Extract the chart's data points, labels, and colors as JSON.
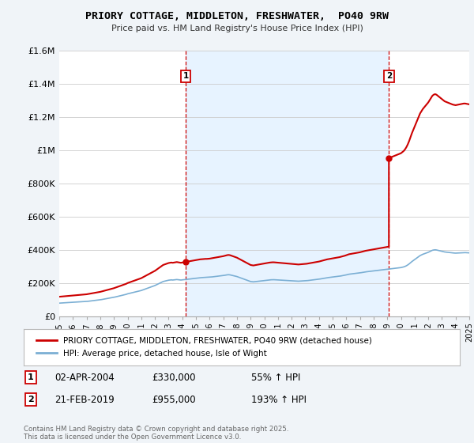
{
  "title": "PRIORY COTTAGE, MIDDLETON, FRESHWATER,  PO40 9RW",
  "subtitle": "Price paid vs. HM Land Registry's House Price Index (HPI)",
  "legend_line1": "PRIORY COTTAGE, MIDDLETON, FRESHWATER, PO40 9RW (detached house)",
  "legend_line2": "HPI: Average price, detached house, Isle of Wight",
  "annotation1_label": "1",
  "annotation1_date": "02-APR-2004",
  "annotation1_price": "£330,000",
  "annotation1_hpi": "55% ↑ HPI",
  "annotation2_label": "2",
  "annotation2_date": "21-FEB-2019",
  "annotation2_price": "£955,000",
  "annotation2_hpi": "193% ↑ HPI",
  "footer": "Contains HM Land Registry data © Crown copyright and database right 2025.\nThis data is licensed under the Open Government Licence v3.0.",
  "sale_color": "#cc0000",
  "hpi_color": "#7bafd4",
  "vline_color": "#cc0000",
  "shade_color": "#ddeeff",
  "background_color": "#f0f4f8",
  "plot_bg_color": "#ffffff",
  "ylim": [
    0,
    1600000
  ],
  "yticks": [
    0,
    200000,
    400000,
    600000,
    800000,
    1000000,
    1200000,
    1400000,
    1600000
  ],
  "ytick_labels": [
    "£0",
    "£200K",
    "£400K",
    "£600K",
    "£800K",
    "£1M",
    "£1.2M",
    "£1.4M",
    "£1.6M"
  ],
  "hpi_data": [
    [
      1995.0,
      82000
    ],
    [
      1995.1,
      82500
    ],
    [
      1995.2,
      83000
    ],
    [
      1995.3,
      83500
    ],
    [
      1995.4,
      84000
    ],
    [
      1995.5,
      84500
    ],
    [
      1995.6,
      85000
    ],
    [
      1995.7,
      85500
    ],
    [
      1995.8,
      86000
    ],
    [
      1995.9,
      86500
    ],
    [
      1996.0,
      87000
    ],
    [
      1996.1,
      87500
    ],
    [
      1996.2,
      88000
    ],
    [
      1996.3,
      88500
    ],
    [
      1996.4,
      89000
    ],
    [
      1996.5,
      89500
    ],
    [
      1996.6,
      90000
    ],
    [
      1996.7,
      90500
    ],
    [
      1996.8,
      91000
    ],
    [
      1996.9,
      91500
    ],
    [
      1997.0,
      92000
    ],
    [
      1997.1,
      93000
    ],
    [
      1997.2,
      94000
    ],
    [
      1997.3,
      95000
    ],
    [
      1997.4,
      96000
    ],
    [
      1997.5,
      97000
    ],
    [
      1997.6,
      98000
    ],
    [
      1997.7,
      99000
    ],
    [
      1997.8,
      100000
    ],
    [
      1997.9,
      101000
    ],
    [
      1998.0,
      102000
    ],
    [
      1998.1,
      103500
    ],
    [
      1998.2,
      105000
    ],
    [
      1998.3,
      106500
    ],
    [
      1998.4,
      108000
    ],
    [
      1998.5,
      109500
    ],
    [
      1998.6,
      111000
    ],
    [
      1998.7,
      112500
    ],
    [
      1998.8,
      114000
    ],
    [
      1998.9,
      115500
    ],
    [
      1999.0,
      117000
    ],
    [
      1999.1,
      119000
    ],
    [
      1999.2,
      121000
    ],
    [
      1999.3,
      123000
    ],
    [
      1999.4,
      125000
    ],
    [
      1999.5,
      127000
    ],
    [
      1999.6,
      129000
    ],
    [
      1999.7,
      131000
    ],
    [
      1999.8,
      133000
    ],
    [
      1999.9,
      135000
    ],
    [
      2000.0,
      138000
    ],
    [
      2000.1,
      140000
    ],
    [
      2000.2,
      142000
    ],
    [
      2000.3,
      144000
    ],
    [
      2000.4,
      146000
    ],
    [
      2000.5,
      148000
    ],
    [
      2000.6,
      150000
    ],
    [
      2000.7,
      152000
    ],
    [
      2000.8,
      154000
    ],
    [
      2000.9,
      156000
    ],
    [
      2001.0,
      158000
    ],
    [
      2001.1,
      161000
    ],
    [
      2001.2,
      164000
    ],
    [
      2001.3,
      167000
    ],
    [
      2001.4,
      170000
    ],
    [
      2001.5,
      173000
    ],
    [
      2001.6,
      176000
    ],
    [
      2001.7,
      179000
    ],
    [
      2001.8,
      182000
    ],
    [
      2001.9,
      185000
    ],
    [
      2002.0,
      188000
    ],
    [
      2002.1,
      192000
    ],
    [
      2002.2,
      196000
    ],
    [
      2002.3,
      200000
    ],
    [
      2002.4,
      204000
    ],
    [
      2002.5,
      208000
    ],
    [
      2002.6,
      212000
    ],
    [
      2002.7,
      214000
    ],
    [
      2002.8,
      216000
    ],
    [
      2002.9,
      218000
    ],
    [
      2003.0,
      220000
    ],
    [
      2003.1,
      221000
    ],
    [
      2003.2,
      222000
    ],
    [
      2003.3,
      221000
    ],
    [
      2003.4,
      222000
    ],
    [
      2003.5,
      223000
    ],
    [
      2003.6,
      224000
    ],
    [
      2003.7,
      223000
    ],
    [
      2003.8,
      222000
    ],
    [
      2003.9,
      221000
    ],
    [
      2004.0,
      222000
    ],
    [
      2004.1,
      223000
    ],
    [
      2004.2,
      224000
    ],
    [
      2004.3,
      225000
    ],
    [
      2004.4,
      226000
    ],
    [
      2004.5,
      227000
    ],
    [
      2004.6,
      228000
    ],
    [
      2004.7,
      229000
    ],
    [
      2004.8,
      230000
    ],
    [
      2004.9,
      231000
    ],
    [
      2005.0,
      232000
    ],
    [
      2005.1,
      233000
    ],
    [
      2005.2,
      234000
    ],
    [
      2005.3,
      235000
    ],
    [
      2005.4,
      235500
    ],
    [
      2005.5,
      236000
    ],
    [
      2005.6,
      236500
    ],
    [
      2005.7,
      237000
    ],
    [
      2005.8,
      237000
    ],
    [
      2005.9,
      237500
    ],
    [
      2006.0,
      238000
    ],
    [
      2006.1,
      239000
    ],
    [
      2006.2,
      240000
    ],
    [
      2006.3,
      241000
    ],
    [
      2006.4,
      242000
    ],
    [
      2006.5,
      243000
    ],
    [
      2006.6,
      244000
    ],
    [
      2006.7,
      245000
    ],
    [
      2006.8,
      246000
    ],
    [
      2006.9,
      247000
    ],
    [
      2007.0,
      248000
    ],
    [
      2007.1,
      249500
    ],
    [
      2007.2,
      251000
    ],
    [
      2007.3,
      252500
    ],
    [
      2007.4,
      253000
    ],
    [
      2007.5,
      252000
    ],
    [
      2007.6,
      250000
    ],
    [
      2007.7,
      248000
    ],
    [
      2007.8,
      246000
    ],
    [
      2007.9,
      244000
    ],
    [
      2008.0,
      242000
    ],
    [
      2008.1,
      239000
    ],
    [
      2008.2,
      236000
    ],
    [
      2008.3,
      233000
    ],
    [
      2008.4,
      230000
    ],
    [
      2008.5,
      227000
    ],
    [
      2008.6,
      224000
    ],
    [
      2008.7,
      221000
    ],
    [
      2008.8,
      218000
    ],
    [
      2008.9,
      215000
    ],
    [
      2009.0,
      212000
    ],
    [
      2009.1,
      211000
    ],
    [
      2009.2,
      210000
    ],
    [
      2009.3,
      211000
    ],
    [
      2009.4,
      212000
    ],
    [
      2009.5,
      213000
    ],
    [
      2009.6,
      214000
    ],
    [
      2009.7,
      215000
    ],
    [
      2009.8,
      216000
    ],
    [
      2009.9,
      217000
    ],
    [
      2010.0,
      218000
    ],
    [
      2010.1,
      219000
    ],
    [
      2010.2,
      220000
    ],
    [
      2010.3,
      221000
    ],
    [
      2010.4,
      222000
    ],
    [
      2010.5,
      222500
    ],
    [
      2010.6,
      223000
    ],
    [
      2010.7,
      223000
    ],
    [
      2010.8,
      222500
    ],
    [
      2010.9,
      222000
    ],
    [
      2011.0,
      221500
    ],
    [
      2011.1,
      221000
    ],
    [
      2011.2,
      220500
    ],
    [
      2011.3,
      220000
    ],
    [
      2011.4,
      219500
    ],
    [
      2011.5,
      219000
    ],
    [
      2011.6,
      218500
    ],
    [
      2011.7,
      218000
    ],
    [
      2011.8,
      217500
    ],
    [
      2011.9,
      217000
    ],
    [
      2012.0,
      216500
    ],
    [
      2012.1,
      216000
    ],
    [
      2012.2,
      215500
    ],
    [
      2012.3,
      215000
    ],
    [
      2012.4,
      214500
    ],
    [
      2012.5,
      214000
    ],
    [
      2012.6,
      214500
    ],
    [
      2012.7,
      215000
    ],
    [
      2012.8,
      215500
    ],
    [
      2012.9,
      216000
    ],
    [
      2013.0,
      216500
    ],
    [
      2013.1,
      217000
    ],
    [
      2013.2,
      218000
    ],
    [
      2013.3,
      219000
    ],
    [
      2013.4,
      220000
    ],
    [
      2013.5,
      221000
    ],
    [
      2013.6,
      222000
    ],
    [
      2013.7,
      223000
    ],
    [
      2013.8,
      224000
    ],
    [
      2013.9,
      225000
    ],
    [
      2014.0,
      226000
    ],
    [
      2014.1,
      227500
    ],
    [
      2014.2,
      229000
    ],
    [
      2014.3,
      230500
    ],
    [
      2014.4,
      232000
    ],
    [
      2014.5,
      233500
    ],
    [
      2014.6,
      235000
    ],
    [
      2014.7,
      236000
    ],
    [
      2014.8,
      237000
    ],
    [
      2014.9,
      238000
    ],
    [
      2015.0,
      239000
    ],
    [
      2015.1,
      240000
    ],
    [
      2015.2,
      241000
    ],
    [
      2015.3,
      242000
    ],
    [
      2015.4,
      243000
    ],
    [
      2015.5,
      244000
    ],
    [
      2015.6,
      245500
    ],
    [
      2015.7,
      247000
    ],
    [
      2015.8,
      248500
    ],
    [
      2015.9,
      250000
    ],
    [
      2016.0,
      252000
    ],
    [
      2016.1,
      254000
    ],
    [
      2016.2,
      256000
    ],
    [
      2016.3,
      257000
    ],
    [
      2016.4,
      258000
    ],
    [
      2016.5,
      259000
    ],
    [
      2016.6,
      260000
    ],
    [
      2016.7,
      261000
    ],
    [
      2016.8,
      262000
    ],
    [
      2016.9,
      263000
    ],
    [
      2017.0,
      264000
    ],
    [
      2017.1,
      265500
    ],
    [
      2017.2,
      267000
    ],
    [
      2017.3,
      268500
    ],
    [
      2017.4,
      270000
    ],
    [
      2017.5,
      271000
    ],
    [
      2017.6,
      272000
    ],
    [
      2017.7,
      273000
    ],
    [
      2017.8,
      274000
    ],
    [
      2017.9,
      275000
    ],
    [
      2018.0,
      276000
    ],
    [
      2018.1,
      277000
    ],
    [
      2018.2,
      278000
    ],
    [
      2018.3,
      279000
    ],
    [
      2018.4,
      280000
    ],
    [
      2018.5,
      281000
    ],
    [
      2018.6,
      282000
    ],
    [
      2018.7,
      283000
    ],
    [
      2018.8,
      284000
    ],
    [
      2018.9,
      285000
    ],
    [
      2019.0,
      286000
    ],
    [
      2019.1,
      287000
    ],
    [
      2019.2,
      288000
    ],
    [
      2019.3,
      289000
    ],
    [
      2019.4,
      290000
    ],
    [
      2019.5,
      291000
    ],
    [
      2019.6,
      292000
    ],
    [
      2019.7,
      293000
    ],
    [
      2019.8,
      294000
    ],
    [
      2019.9,
      295000
    ],
    [
      2020.0,
      296000
    ],
    [
      2020.1,
      298000
    ],
    [
      2020.2,
      300000
    ],
    [
      2020.3,
      303000
    ],
    [
      2020.4,
      307000
    ],
    [
      2020.5,
      312000
    ],
    [
      2020.6,
      318000
    ],
    [
      2020.7,
      325000
    ],
    [
      2020.8,
      332000
    ],
    [
      2020.9,
      338000
    ],
    [
      2021.0,
      344000
    ],
    [
      2021.1,
      350000
    ],
    [
      2021.2,
      356000
    ],
    [
      2021.3,
      362000
    ],
    [
      2021.4,
      368000
    ],
    [
      2021.5,
      372000
    ],
    [
      2021.6,
      376000
    ],
    [
      2021.7,
      379000
    ],
    [
      2021.8,
      382000
    ],
    [
      2021.9,
      385000
    ],
    [
      2022.0,
      388000
    ],
    [
      2022.1,
      392000
    ],
    [
      2022.2,
      396000
    ],
    [
      2022.3,
      400000
    ],
    [
      2022.4,
      402000
    ],
    [
      2022.5,
      403000
    ],
    [
      2022.6,
      402000
    ],
    [
      2022.7,
      400000
    ],
    [
      2022.8,
      398000
    ],
    [
      2022.9,
      396000
    ],
    [
      2023.0,
      394000
    ],
    [
      2023.1,
      392000
    ],
    [
      2023.2,
      390000
    ],
    [
      2023.3,
      389000
    ],
    [
      2023.4,
      388000
    ],
    [
      2023.5,
      387000
    ],
    [
      2023.6,
      386000
    ],
    [
      2023.7,
      385000
    ],
    [
      2023.8,
      384000
    ],
    [
      2023.9,
      383500
    ],
    [
      2024.0,
      383000
    ],
    [
      2024.1,
      383500
    ],
    [
      2024.2,
      384000
    ],
    [
      2024.3,
      384500
    ],
    [
      2024.4,
      385000
    ],
    [
      2024.5,
      385500
    ],
    [
      2024.6,
      386000
    ],
    [
      2024.7,
      386000
    ],
    [
      2024.8,
      385500
    ],
    [
      2024.9,
      385000
    ],
    [
      2025.0,
      384500
    ]
  ],
  "sale1_year": 2004.25,
  "sale1_price": 330000,
  "sale2_year": 2019.12,
  "sale2_price": 955000,
  "vline1_x": 2004.25,
  "vline2_x": 2019.12,
  "xmin": 1995,
  "xmax": 2025
}
